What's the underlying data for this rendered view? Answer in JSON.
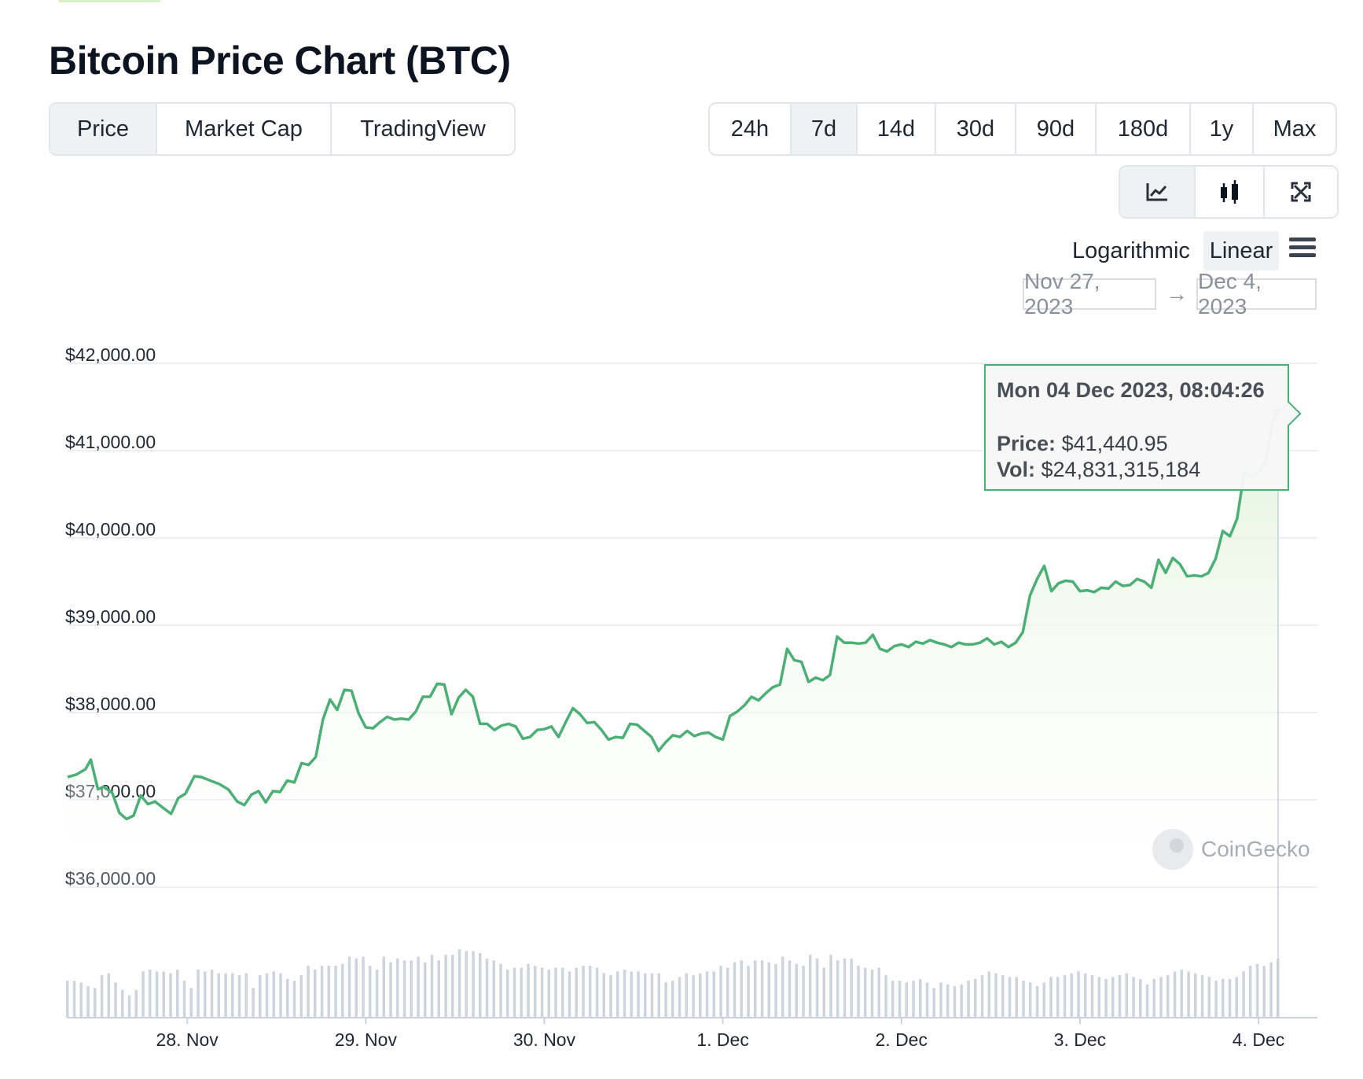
{
  "title": "Bitcoin Price Chart (BTC)",
  "view_tabs": [
    {
      "label": "Price",
      "active": true
    },
    {
      "label": "Market Cap",
      "active": false
    },
    {
      "label": "TradingView",
      "active": false
    }
  ],
  "range_tabs": [
    {
      "label": "24h",
      "active": false
    },
    {
      "label": "7d",
      "active": true
    },
    {
      "label": "14d",
      "active": false
    },
    {
      "label": "30d",
      "active": false
    },
    {
      "label": "90d",
      "active": false
    },
    {
      "label": "180d",
      "active": false
    },
    {
      "label": "1y",
      "active": false
    },
    {
      "label": "Max",
      "active": false
    }
  ],
  "chart_type_buttons": [
    {
      "icon": "line-chart-icon",
      "active": true
    },
    {
      "icon": "candlestick-icon",
      "active": false
    },
    {
      "icon": "fullscreen-icon",
      "active": false
    }
  ],
  "scale": {
    "log_label": "Logarithmic",
    "linear_label": "Linear",
    "selected": "Linear"
  },
  "date_range": {
    "from": "Nov 27, 2023",
    "arrow": "→",
    "to": "Dec 4, 2023"
  },
  "tooltip": {
    "date": "Mon 04 Dec 2023, 08:04:26",
    "price_label": "Price:",
    "price_value": "$41,440.95",
    "vol_label": "Vol:",
    "vol_value": "$24,831,315,184"
  },
  "watermark": "CoinGecko",
  "colors": {
    "line": "#4caf76",
    "area_top": "#e2f3db",
    "volume": "#cdd4de",
    "grid": "#e6e9ed"
  },
  "chart_data": {
    "type": "line",
    "title": "",
    "xlabel": "",
    "ylabel": "",
    "y_tick_labels": [
      "$42,000.00",
      "$41,000.00",
      "$40,000.00",
      "$39,000.00",
      "$38,000.00",
      "$37,000.00",
      "$36,000.00"
    ],
    "y_ticks": [
      42000,
      41000,
      40000,
      39000,
      38000,
      37000,
      36000
    ],
    "ylim": [
      36000,
      42000
    ],
    "x_tick_labels": [
      "28. Nov",
      "29. Nov",
      "30. Nov",
      "1. Dec",
      "2. Dec",
      "3. Dec",
      "4. Dec"
    ],
    "x_ticks": [
      0.67,
      1.67,
      2.67,
      3.67,
      4.67,
      5.67,
      6.67
    ],
    "xlim": [
      0,
      7
    ],
    "grid": true,
    "legend": "none",
    "series": [
      {
        "name": "Price",
        "points": [
          [
            0,
            37260
          ],
          [
            0.05,
            37290
          ],
          [
            0.1,
            37350
          ],
          [
            0.13,
            37460
          ],
          [
            0.17,
            37120
          ],
          [
            0.2,
            37150
          ],
          [
            0.25,
            37080
          ],
          [
            0.29,
            36850
          ],
          [
            0.33,
            36780
          ],
          [
            0.37,
            36820
          ],
          [
            0.41,
            37050
          ],
          [
            0.45,
            36950
          ],
          [
            0.49,
            36980
          ],
          [
            0.54,
            36900
          ],
          [
            0.58,
            36840
          ],
          [
            0.62,
            37020
          ],
          [
            0.66,
            37070
          ],
          [
            0.71,
            37270
          ],
          [
            0.75,
            37260
          ],
          [
            0.8,
            37220
          ],
          [
            0.85,
            37180
          ],
          [
            0.9,
            37120
          ],
          [
            0.95,
            36980
          ],
          [
            0.99,
            36940
          ],
          [
            1.03,
            37060
          ],
          [
            1.07,
            37100
          ],
          [
            1.11,
            36970
          ],
          [
            1.15,
            37100
          ],
          [
            1.19,
            37090
          ],
          [
            1.23,
            37220
          ],
          [
            1.27,
            37200
          ],
          [
            1.31,
            37420
          ],
          [
            1.35,
            37400
          ],
          [
            1.39,
            37490
          ],
          [
            1.43,
            37920
          ],
          [
            1.47,
            38150
          ],
          [
            1.51,
            38030
          ],
          [
            1.55,
            38260
          ],
          [
            1.59,
            38250
          ],
          [
            1.63,
            37990
          ],
          [
            1.67,
            37830
          ],
          [
            1.71,
            37820
          ],
          [
            1.75,
            37890
          ],
          [
            1.79,
            37950
          ],
          [
            1.83,
            37920
          ],
          [
            1.87,
            37930
          ],
          [
            1.91,
            37920
          ],
          [
            1.95,
            38010
          ],
          [
            1.99,
            38180
          ],
          [
            2.03,
            38180
          ],
          [
            2.07,
            38330
          ],
          [
            2.11,
            38320
          ],
          [
            2.15,
            37980
          ],
          [
            2.19,
            38170
          ],
          [
            2.23,
            38260
          ],
          [
            2.27,
            38180
          ],
          [
            2.31,
            37870
          ],
          [
            2.35,
            37870
          ],
          [
            2.39,
            37800
          ],
          [
            2.43,
            37850
          ],
          [
            2.47,
            37870
          ],
          [
            2.51,
            37840
          ],
          [
            2.55,
            37700
          ],
          [
            2.59,
            37720
          ],
          [
            2.63,
            37800
          ],
          [
            2.67,
            37810
          ],
          [
            2.71,
            37840
          ],
          [
            2.75,
            37720
          ],
          [
            2.79,
            37890
          ],
          [
            2.83,
            38050
          ],
          [
            2.87,
            37980
          ],
          [
            2.91,
            37880
          ],
          [
            2.95,
            37890
          ],
          [
            2.99,
            37800
          ],
          [
            3.03,
            37690
          ],
          [
            3.07,
            37720
          ],
          [
            3.11,
            37710
          ],
          [
            3.15,
            37870
          ],
          [
            3.19,
            37860
          ],
          [
            3.23,
            37790
          ],
          [
            3.27,
            37720
          ],
          [
            3.31,
            37560
          ],
          [
            3.35,
            37660
          ],
          [
            3.39,
            37740
          ],
          [
            3.43,
            37720
          ],
          [
            3.47,
            37790
          ],
          [
            3.51,
            37730
          ],
          [
            3.55,
            37760
          ],
          [
            3.59,
            37770
          ],
          [
            3.63,
            37720
          ],
          [
            3.67,
            37690
          ],
          [
            3.71,
            37960
          ],
          [
            3.75,
            38010
          ],
          [
            3.79,
            38080
          ],
          [
            3.83,
            38180
          ],
          [
            3.87,
            38140
          ],
          [
            3.91,
            38220
          ],
          [
            3.95,
            38290
          ],
          [
            3.99,
            38320
          ],
          [
            4.03,
            38730
          ],
          [
            4.07,
            38600
          ],
          [
            4.11,
            38580
          ],
          [
            4.15,
            38350
          ],
          [
            4.19,
            38400
          ],
          [
            4.23,
            38370
          ],
          [
            4.27,
            38430
          ],
          [
            4.31,
            38870
          ],
          [
            4.35,
            38800
          ],
          [
            4.39,
            38800
          ],
          [
            4.43,
            38790
          ],
          [
            4.47,
            38800
          ],
          [
            4.51,
            38890
          ],
          [
            4.55,
            38730
          ],
          [
            4.59,
            38700
          ],
          [
            4.63,
            38760
          ],
          [
            4.67,
            38780
          ],
          [
            4.71,
            38750
          ],
          [
            4.75,
            38810
          ],
          [
            4.79,
            38790
          ],
          [
            4.83,
            38830
          ],
          [
            4.87,
            38800
          ],
          [
            4.91,
            38780
          ],
          [
            4.95,
            38750
          ],
          [
            4.99,
            38800
          ],
          [
            5.03,
            38780
          ],
          [
            5.07,
            38780
          ],
          [
            5.11,
            38800
          ],
          [
            5.15,
            38850
          ],
          [
            5.19,
            38780
          ],
          [
            5.23,
            38810
          ],
          [
            5.27,
            38750
          ],
          [
            5.31,
            38800
          ],
          [
            5.35,
            38920
          ],
          [
            5.39,
            39340
          ],
          [
            5.43,
            39530
          ],
          [
            5.47,
            39680
          ],
          [
            5.51,
            39390
          ],
          [
            5.55,
            39480
          ],
          [
            5.59,
            39510
          ],
          [
            5.63,
            39500
          ],
          [
            5.67,
            39390
          ],
          [
            5.71,
            39400
          ],
          [
            5.75,
            39380
          ],
          [
            5.79,
            39430
          ],
          [
            5.83,
            39420
          ],
          [
            5.87,
            39500
          ],
          [
            5.91,
            39450
          ],
          [
            5.95,
            39460
          ],
          [
            5.99,
            39530
          ],
          [
            6.03,
            39500
          ],
          [
            6.07,
            39430
          ],
          [
            6.11,
            39750
          ],
          [
            6.15,
            39600
          ],
          [
            6.19,
            39770
          ],
          [
            6.23,
            39700
          ],
          [
            6.27,
            39560
          ],
          [
            6.31,
            39570
          ],
          [
            6.35,
            39560
          ],
          [
            6.39,
            39600
          ],
          [
            6.43,
            39760
          ],
          [
            6.47,
            40080
          ],
          [
            6.51,
            40020
          ],
          [
            6.55,
            40220
          ],
          [
            6.59,
            40750
          ],
          [
            6.63,
            40700
          ],
          [
            6.67,
            40760
          ],
          [
            6.71,
            40870
          ],
          [
            6.75,
            41340
          ],
          [
            6.78,
            41440.95
          ]
        ]
      }
    ],
    "volume_bars": [
      20,
      20,
      19,
      17,
      16,
      23,
      24,
      19,
      15,
      12,
      15,
      25,
      26,
      25,
      25,
      24,
      26,
      20,
      16,
      26,
      25,
      26,
      24,
      24,
      24,
      23,
      24,
      16,
      23,
      24,
      25,
      24,
      21,
      20,
      23,
      28,
      26,
      28,
      28,
      28,
      29,
      33,
      32,
      33,
      28,
      26,
      33,
      30,
      32,
      31,
      31,
      33,
      30,
      34,
      31,
      34,
      34,
      37,
      36,
      36,
      35,
      32,
      31,
      29,
      26,
      27,
      27,
      29,
      28,
      27,
      26,
      27,
      27,
      25,
      27,
      28,
      28,
      27,
      24,
      23,
      25,
      26,
      25,
      25,
      24,
      24,
      24,
      19,
      20,
      22,
      24,
      23,
      24,
      25,
      25,
      28,
      27,
      30,
      31,
      28,
      31,
      31,
      30,
      29,
      33,
      31,
      29,
      28,
      34,
      32,
      27,
      34,
      31,
      32,
      32,
      28,
      27,
      26,
      27,
      23,
      20,
      20,
      19,
      20,
      21,
      19,
      16,
      19,
      18,
      17,
      18,
      20,
      21,
      23,
      25,
      24,
      23,
      22,
      22,
      20,
      19,
      17,
      19,
      22,
      22,
      23,
      24,
      25,
      24,
      23,
      22,
      21,
      22,
      23,
      24,
      22,
      21,
      18,
      21,
      22,
      23,
      25,
      26,
      25,
      24,
      23,
      22,
      20,
      21,
      21,
      22,
      25,
      28,
      29,
      28,
      30,
      32
    ]
  }
}
